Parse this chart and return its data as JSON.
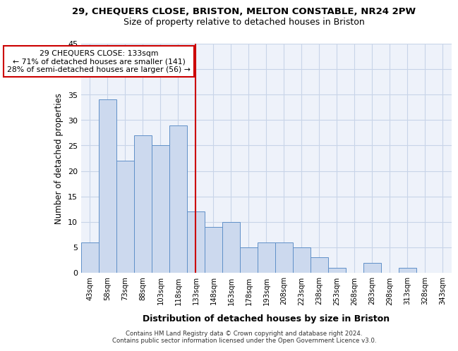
{
  "title_line1": "29, CHEQUERS CLOSE, BRISTON, MELTON CONSTABLE, NR24 2PW",
  "title_line2": "Size of property relative to detached houses in Briston",
  "xlabel": "Distribution of detached houses by size in Briston",
  "ylabel": "Number of detached properties",
  "categories": [
    "43sqm",
    "58sqm",
    "73sqm",
    "88sqm",
    "103sqm",
    "118sqm",
    "133sqm",
    "148sqm",
    "163sqm",
    "178sqm",
    "193sqm",
    "208sqm",
    "223sqm",
    "238sqm",
    "253sqm",
    "268sqm",
    "283sqm",
    "298sqm",
    "313sqm",
    "328sqm",
    "343sqm"
  ],
  "values": [
    6,
    34,
    22,
    27,
    25,
    29,
    12,
    9,
    10,
    5,
    6,
    6,
    5,
    3,
    1,
    0,
    2,
    0,
    1,
    0,
    0
  ],
  "bar_color": "#ccd9ee",
  "bar_edge_color": "#6090c8",
  "highlight_index": 6,
  "vline_x": 6,
  "vline_color": "#cc0000",
  "annotation_line1": "29 CHEQUERS CLOSE: 133sqm",
  "annotation_line2": "← 71% of detached houses are smaller (141)",
  "annotation_line3": "28% of semi-detached houses are larger (56) →",
  "annotation_box_color": "#cc0000",
  "ylim": [
    0,
    45
  ],
  "yticks": [
    0,
    5,
    10,
    15,
    20,
    25,
    30,
    35,
    40,
    45
  ],
  "footer_line1": "Contains HM Land Registry data © Crown copyright and database right 2024.",
  "footer_line2": "Contains public sector information licensed under the Open Government Licence v3.0.",
  "bg_color": "#eef2fa",
  "grid_color": "#c8d4e8",
  "fig_width": 6.0,
  "fig_height": 5.0
}
